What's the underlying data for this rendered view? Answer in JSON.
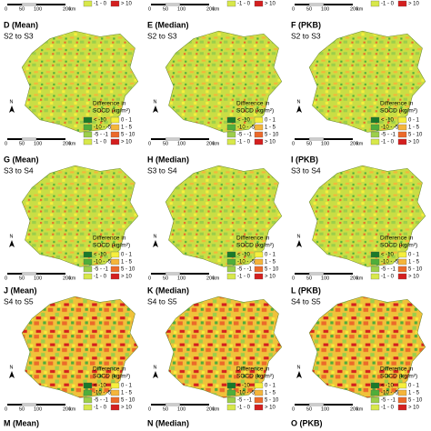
{
  "panels": [
    {
      "label": "D (Mean)",
      "transition": "S2 to S3"
    },
    {
      "label": "E (Median)",
      "transition": "S2 to S3"
    },
    {
      "label": "F (PKB)",
      "transition": "S2 to S3"
    },
    {
      "label": "G (Mean)",
      "transition": "S3 to S4"
    },
    {
      "label": "H (Median)",
      "transition": "S3 to S4"
    },
    {
      "label": "I (PKB)",
      "transition": "S3 to S4"
    },
    {
      "label": "J (Mean)",
      "transition": "S4 to S5"
    },
    {
      "label": "K (Median)",
      "transition": "S4 to S5"
    },
    {
      "label": "L (PKB)",
      "transition": "S4 to S5"
    },
    {
      "label": "M (Mean)"
    },
    {
      "label": "N (Median)"
    },
    {
      "label": "O (PKB)"
    }
  ],
  "legend": {
    "title_line1": "Difference in",
    "title_line2": "SOCD (kg/m²)",
    "items": [
      {
        "label": "< -10",
        "color": "#1a7a2a"
      },
      {
        "label": "-10 - -5",
        "color": "#4fae3a"
      },
      {
        "label": "-5 - -1",
        "color": "#9ccf4a"
      },
      {
        "label": "-1 - 0",
        "color": "#d8e84a"
      },
      {
        "label": "0 - 1",
        "color": "#f6ef3c"
      },
      {
        "label": "1 - 5",
        "color": "#f5b53a"
      },
      {
        "label": "5 - 10",
        "color": "#ec6a2a"
      },
      {
        "label": "> 10",
        "color": "#d41f1f"
      }
    ]
  },
  "north": "N",
  "scale": {
    "ticks": [
      "0",
      "50",
      "100",
      "200"
    ],
    "unit": "km"
  }
}
